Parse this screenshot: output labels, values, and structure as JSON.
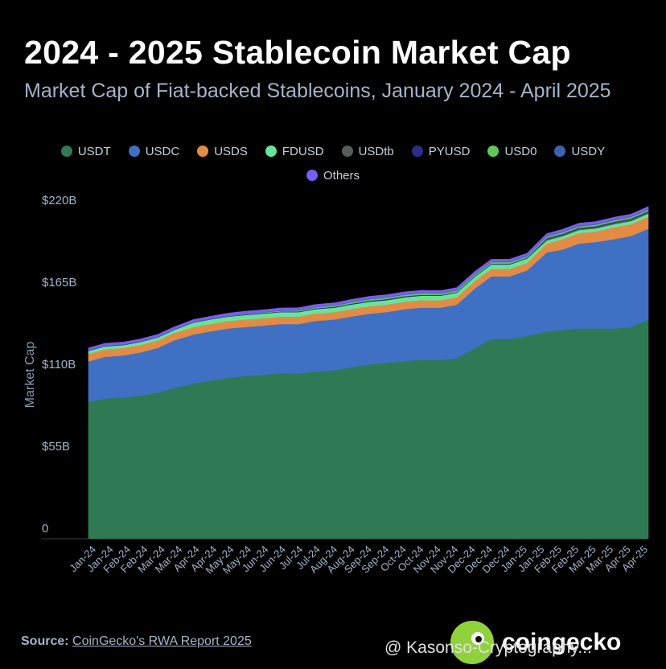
{
  "header": {
    "title": "2024 - 2025 Stablecoin Market Cap",
    "subtitle": "Market Cap of Fiat-backed Stablecoins, January 2024 - April 2025"
  },
  "legend": [
    {
      "label": "USDT",
      "color": "#2f7a55"
    },
    {
      "label": "USDC",
      "color": "#3f70c4"
    },
    {
      "label": "USDS",
      "color": "#e38b45"
    },
    {
      "label": "FDUSD",
      "color": "#66e59a"
    },
    {
      "label": "USDtb",
      "color": "#555e5a"
    },
    {
      "label": "PYUSD",
      "color": "#2a2f8c"
    },
    {
      "label": "USD0",
      "color": "#5fc85a"
    },
    {
      "label": "USDY",
      "color": "#4061b0"
    },
    {
      "label": "Others",
      "color": "#7b5cf0"
    }
  ],
  "chart_data": {
    "type": "area",
    "stacked": true,
    "ylabel": "Market Cap",
    "ylim": [
      0,
      220
    ],
    "y_ticks": [
      {
        "value": 0,
        "label": "0"
      },
      {
        "value": 55,
        "label": "$55B"
      },
      {
        "value": 110,
        "label": "$110B"
      },
      {
        "value": 165,
        "label": "$165B"
      },
      {
        "value": 220,
        "label": "$220B"
      }
    ],
    "x_tick_labels": [
      "Jan-24",
      "Jan-24",
      "Feb-24",
      "Feb-24",
      "Mar-24",
      "Mar-24",
      "Apr-24",
      "Apr-24",
      "May-24",
      "May-24",
      "Jun-24",
      "Jun-24",
      "Jul-24",
      "Jul-24",
      "Aug-24",
      "Aug-24",
      "Sep-24",
      "Sep-24",
      "Oct-24",
      "Oct-24",
      "Nov-24",
      "Nov-24",
      "Dec-24",
      "Dec-24",
      "Dec-24",
      "Jan-25",
      "Jan-25",
      "Feb-25",
      "Feb-25",
      "Mar-25",
      "Mar-25",
      "Apr-25",
      "Apr-25"
    ],
    "x": [
      "2024-01-01",
      "2024-01-15",
      "2024-02-01",
      "2024-02-15",
      "2024-03-01",
      "2024-03-15",
      "2024-04-01",
      "2024-04-15",
      "2024-05-01",
      "2024-05-15",
      "2024-06-01",
      "2024-06-15",
      "2024-07-01",
      "2024-07-15",
      "2024-08-01",
      "2024-08-15",
      "2024-09-01",
      "2024-09-15",
      "2024-10-01",
      "2024-10-15",
      "2024-11-01",
      "2024-11-15",
      "2024-12-01",
      "2024-12-15",
      "2024-12-31",
      "2025-01-15",
      "2025-02-01",
      "2025-02-15",
      "2025-03-01",
      "2025-03-15",
      "2025-04-01",
      "2025-04-15",
      "2025-04-30"
    ],
    "series": [
      {
        "name": "USDT",
        "color": "#2f7a55",
        "values": [
          92,
          94,
          95,
          96,
          98,
          101,
          104,
          106,
          108,
          109,
          110,
          111,
          111,
          112,
          113,
          115,
          117,
          118,
          119,
          120,
          120,
          121,
          128,
          134,
          134,
          136,
          139,
          140,
          141,
          141,
          141,
          142,
          147
        ]
      },
      {
        "name": "USDC",
        "color": "#3f70c4",
        "values": [
          27,
          28,
          28,
          29,
          30,
          32,
          33,
          33,
          33,
          33,
          33,
          33,
          33,
          34,
          34,
          34,
          34,
          34,
          35,
          35,
          35,
          36,
          40,
          42,
          42,
          44,
          53,
          54,
          57,
          58,
          60,
          61,
          61
        ]
      },
      {
        "name": "USDS",
        "color": "#e38b45",
        "values": [
          5,
          5,
          5,
          5,
          5,
          5,
          5,
          5,
          5,
          5,
          5,
          5,
          5,
          5,
          5,
          5,
          5,
          5,
          5,
          5,
          5,
          5,
          5,
          5,
          5,
          5,
          6,
          7,
          7,
          7,
          8,
          8,
          8
        ]
      },
      {
        "name": "FDUSD",
        "color": "#66e59a",
        "values": [
          2,
          2,
          2,
          2,
          2,
          2,
          3,
          3,
          3,
          3,
          3,
          3,
          3,
          3,
          3,
          3,
          3,
          3,
          3,
          3,
          3,
          3,
          3,
          3,
          3,
          3,
          2,
          2,
          2,
          2,
          2,
          2,
          2
        ]
      },
      {
        "name": "USDtb",
        "color": "#555e5a",
        "values": [
          0,
          0,
          0,
          0,
          0,
          0,
          0,
          0,
          0,
          0,
          0,
          0,
          0,
          0,
          0,
          0,
          0,
          0,
          0,
          0,
          0,
          0,
          0,
          0,
          0,
          0,
          1,
          1,
          1,
          1,
          1,
          1,
          1
        ]
      },
      {
        "name": "PYUSD",
        "color": "#2a2f8c",
        "values": [
          0.3,
          0.3,
          0.3,
          0.3,
          0.3,
          0.3,
          0.3,
          0.3,
          0.3,
          0.4,
          0.4,
          0.4,
          0.5,
          0.5,
          0.6,
          0.6,
          0.7,
          0.7,
          0.7,
          0.6,
          0.5,
          0.5,
          0.5,
          0.5,
          0.5,
          0.5,
          0.6,
          0.6,
          0.6,
          0.6,
          0.7,
          0.7,
          0.8
        ]
      },
      {
        "name": "USD0",
        "color": "#5fc85a",
        "values": [
          0,
          0,
          0,
          0,
          0,
          0,
          0,
          0,
          0.2,
          0.3,
          0.4,
          0.5,
          0.6,
          0.7,
          0.8,
          0.9,
          1,
          1,
          1,
          1,
          1,
          1,
          1,
          1,
          1,
          1,
          1,
          1,
          1,
          1,
          1,
          1,
          1
        ]
      },
      {
        "name": "USDY",
        "color": "#4061b0",
        "values": [
          0.2,
          0.2,
          0.2,
          0.2,
          0.2,
          0.2,
          0.2,
          0.3,
          0.3,
          0.3,
          0.3,
          0.3,
          0.3,
          0.3,
          0.3,
          0.4,
          0.4,
          0.4,
          0.4,
          0.4,
          0.4,
          0.4,
          0.4,
          0.4,
          0.5,
          0.5,
          0.5,
          0.5,
          0.5,
          0.5,
          0.5,
          0.5,
          0.5
        ]
      },
      {
        "name": "Others",
        "color": "#7b5cf0",
        "values": [
          1.5,
          1.5,
          1.5,
          1.5,
          1.5,
          1.5,
          1.5,
          1.5,
          1.5,
          1.5,
          1.5,
          1.5,
          1.5,
          1.5,
          1.5,
          1.5,
          1.5,
          1.5,
          1.5,
          1.5,
          1.5,
          1.5,
          1.5,
          1.5,
          1.5,
          1.5,
          1.5,
          1.5,
          1.5,
          1.5,
          1.5,
          1.5,
          1.5
        ]
      }
    ]
  },
  "footer": {
    "source_label": "Source:",
    "source_link": "CoinGecko's RWA Report 2025",
    "logo_text": "coingecko",
    "watermark": "@ Kasonso-Cryptography..."
  }
}
